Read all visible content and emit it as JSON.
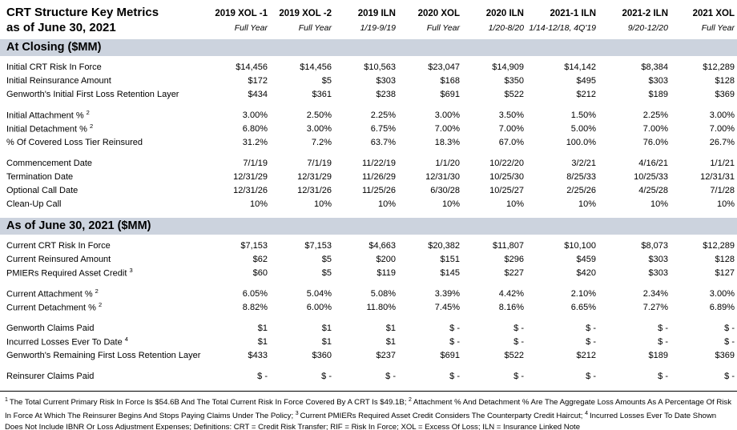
{
  "title": {
    "line1": "CRT Structure Key Metrics",
    "line2": "as of June 30, 2021"
  },
  "columns": [
    {
      "label": "2019 XOL -1",
      "period": "Full Year"
    },
    {
      "label": "2019 XOL -2",
      "period": "Full Year"
    },
    {
      "label": "2019 ILN",
      "period": "1/19-9/19"
    },
    {
      "label": "2020 XOL",
      "period": "Full Year"
    },
    {
      "label": "2020 ILN",
      "period": "1/20-8/20"
    },
    {
      "label": "2021-1 ILN",
      "period": "1/14-12/18, 4Q'19"
    },
    {
      "label": "2021-2 ILN",
      "period": "9/20-12/20"
    },
    {
      "label": "2021 XOL",
      "period": "Full Year"
    }
  ],
  "sections": [
    {
      "header": "At Closing ($MM)",
      "groups": [
        {
          "rows": [
            {
              "label": "Initial CRT Risk In Force",
              "sup": "",
              "values": [
                "$14,456",
                "$14,456",
                "$10,563",
                "$23,047",
                "$14,909",
                "$14,142",
                "$8,384",
                "$12,289"
              ]
            },
            {
              "label": "Initial Reinsurance Amount",
              "sup": "",
              "values": [
                "$172",
                "$5",
                "$303",
                "$168",
                "$350",
                "$495",
                "$303",
                "$128"
              ]
            },
            {
              "label": "Genworth's Initial First Loss Retention Layer",
              "sup": "",
              "values": [
                "$434",
                "$361",
                "$238",
                "$691",
                "$522",
                "$212",
                "$189",
                "$369"
              ]
            }
          ]
        },
        {
          "rows": [
            {
              "label": "Initial Attachment % ",
              "sup": "2",
              "values": [
                "3.00%",
                "2.50%",
                "2.25%",
                "3.00%",
                "3.50%",
                "1.50%",
                "2.25%",
                "3.00%"
              ]
            },
            {
              "label": "Initial Detachment % ",
              "sup": "2",
              "values": [
                "6.80%",
                "3.00%",
                "6.75%",
                "7.00%",
                "7.00%",
                "5.00%",
                "7.00%",
                "7.00%"
              ]
            },
            {
              "label": "% Of Covered Loss Tier Reinsured",
              "sup": "",
              "values": [
                "31.2%",
                "7.2%",
                "63.7%",
                "18.3%",
                "67.0%",
                "100.0%",
                "76.0%",
                "26.7%"
              ]
            }
          ]
        },
        {
          "rows": [
            {
              "label": "Commencement Date",
              "sup": "",
              "values": [
                "7/1/19",
                "7/1/19",
                "11/22/19",
                "1/1/20",
                "10/22/20",
                "3/2/21",
                "4/16/21",
                "1/1/21"
              ]
            },
            {
              "label": "Termination Date",
              "sup": "",
              "values": [
                "12/31/29",
                "12/31/29",
                "11/26/29",
                "12/31/30",
                "10/25/30",
                "8/25/33",
                "10/25/33",
                "12/31/31"
              ]
            },
            {
              "label": "Optional Call Date",
              "sup": "",
              "values": [
                "12/31/26",
                "12/31/26",
                "11/25/26",
                "6/30/28",
                "10/25/27",
                "2/25/26",
                "4/25/28",
                "7/1/28"
              ]
            },
            {
              "label": "Clean-Up Call",
              "sup": "",
              "values": [
                "10%",
                "10%",
                "10%",
                "10%",
                "10%",
                "10%",
                "10%",
                "10%"
              ]
            }
          ]
        }
      ]
    },
    {
      "header": "As of June 30, 2021 ($MM)",
      "groups": [
        {
          "rows": [
            {
              "label": "Current CRT Risk In Force",
              "sup": "",
              "values": [
                "$7,153",
                "$7,153",
                "$4,663",
                "$20,382",
                "$11,807",
                "$10,100",
                "$8,073",
                "$12,289"
              ]
            },
            {
              "label": "Current Reinsured Amount",
              "sup": "",
              "values": [
                "$62",
                "$5",
                "$200",
                "$151",
                "$296",
                "$459",
                "$303",
                "$128"
              ]
            },
            {
              "label": "PMIERs Required Asset Credit ",
              "sup": "3",
              "values": [
                "$60",
                "$5",
                "$119",
                "$145",
                "$227",
                "$420",
                "$303",
                "$127"
              ]
            }
          ]
        },
        {
          "rows": [
            {
              "label": "Current Attachment % ",
              "sup": "2",
              "values": [
                "6.05%",
                "5.04%",
                "5.08%",
                "3.39%",
                "4.42%",
                "2.10%",
                "2.34%",
                "3.00%"
              ]
            },
            {
              "label": "Current Detachment % ",
              "sup": "2",
              "values": [
                "8.82%",
                "6.00%",
                "11.80%",
                "7.45%",
                "8.16%",
                "6.65%",
                "7.27%",
                "6.89%"
              ]
            }
          ]
        },
        {
          "rows": [
            {
              "label": "Genworth Claims Paid",
              "sup": "",
              "values": [
                "$1",
                "$1",
                "$1",
                "$ -",
                "$ -",
                "$ -",
                "$ -",
                "$ -"
              ]
            },
            {
              "label": "Incurred Losses Ever To Date ",
              "sup": "4",
              "values": [
                "$1",
                "$1",
                "$1",
                "$ -",
                "$ -",
                "$ -",
                "$ -",
                "$ -"
              ]
            },
            {
              "label": "Genworth's Remaining First Loss Retention Layer",
              "sup": "",
              "values": [
                "$433",
                "$360",
                "$237",
                "$691",
                "$522",
                "$212",
                "$189",
                "$369"
              ]
            }
          ]
        },
        {
          "rows": [
            {
              "label": "Reinsurer Claims Paid",
              "sup": "",
              "values": [
                "$ -",
                "$ -",
                "$ -",
                "$ -",
                "$ -",
                "$ -",
                "$ -",
                "$ -"
              ]
            }
          ]
        }
      ]
    }
  ],
  "footnote": {
    "segments": [
      {
        "sup": "1",
        "text": "The Total Current Primary Risk In Force Is $54.6B And The Total Current Risk In Force Covered By A CRT Is $49.1B;  "
      },
      {
        "sup": "2",
        "text": "Attachment % And Detachment % Are The Aggregate Loss Amounts As A Percentage Of Risk In Force At Which The Reinsurer Begins And Stops Paying Claims Under The Policy;  "
      },
      {
        "sup": "3",
        "text": "Current PMIERs Required Asset Credit Considers The Counterparty Credit Haircut;  "
      },
      {
        "sup": "4",
        "text": "Incurred Losses Ever To Date Shown Does Not Include IBNR Or Loss Adjustment Expenses; Definitions: CRT = Credit Risk Transfer; RIF = Risk In Force; XOL = Excess Of Loss;  ILN = Insurance Linked Note"
      }
    ]
  },
  "colors": {
    "section_bar_bg": "#ccd3de"
  }
}
